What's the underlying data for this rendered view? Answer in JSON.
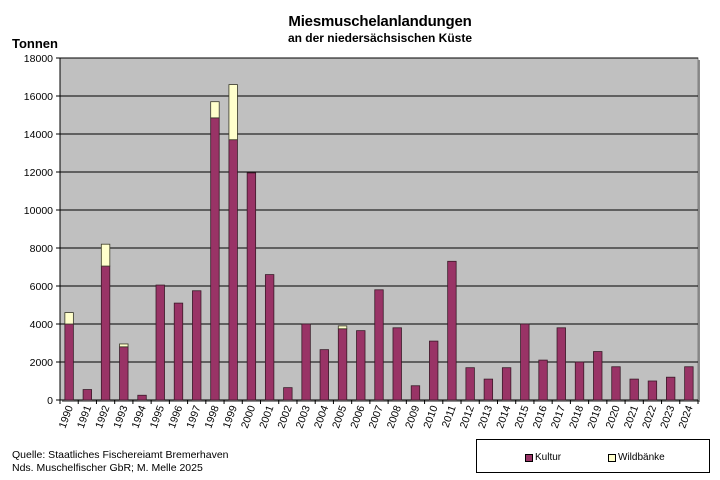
{
  "title": "Miesmuschelanlandungen",
  "subtitle": "an der niedersächsischen Küste",
  "source": {
    "line1": "Quelle: Staatliches Fischereiamt Bremerhaven",
    "line2": "Nds. Muschelfischer GbR; M. Melle 2025"
  },
  "legend": [
    {
      "label": "Kultur",
      "color": "#993366"
    },
    {
      "label": "Wildbänke",
      "color": "#FFFFCC"
    }
  ],
  "colors": {
    "plot_bg": "#C0C0C0",
    "kultur": "#993366",
    "wildbaenke": "#FFFFCC"
  },
  "chart_data": {
    "type": "bar",
    "stacked": true,
    "title": "Miesmuschelanlandungen an der niedersächsischen Küste",
    "xlabel": "",
    "ylabel": "Tonnen",
    "ylim": [
      0,
      18000
    ],
    "yticks": [
      0,
      2000,
      4000,
      6000,
      8000,
      10000,
      12000,
      14000,
      16000,
      18000
    ],
    "grid": true,
    "legend_position": "bottom-right",
    "categories": [
      "1990",
      "1991",
      "1992",
      "1993",
      "1994",
      "1995",
      "1996",
      "1997",
      "1998",
      "1999",
      "2000",
      "2001",
      "2002",
      "2003",
      "2004",
      "2005",
      "2006",
      "2007",
      "2008",
      "2009",
      "2010",
      "2011",
      "2012",
      "2013",
      "2014",
      "2015",
      "2016",
      "2017",
      "2018",
      "2019",
      "2020",
      "2021",
      "2022",
      "2023",
      "2024"
    ],
    "series": [
      {
        "name": "Kultur",
        "values": [
          4000,
          550,
          7050,
          2800,
          250,
          6050,
          5100,
          5750,
          14850,
          13700,
          11950,
          6600,
          650,
          4000,
          2650,
          3750,
          3650,
          5800,
          3800,
          750,
          3100,
          7300,
          1700,
          1100,
          1700,
          4000,
          2100,
          3800,
          2000,
          2550,
          1750,
          1100,
          1000,
          1200,
          1750
        ]
      },
      {
        "name": "Wildbänke",
        "values": [
          600,
          0,
          1150,
          150,
          0,
          0,
          0,
          0,
          850,
          2900,
          0,
          0,
          0,
          0,
          0,
          150,
          0,
          0,
          0,
          0,
          0,
          0,
          0,
          0,
          0,
          0,
          0,
          0,
          0,
          0,
          0,
          0,
          0,
          0,
          0
        ]
      }
    ]
  }
}
